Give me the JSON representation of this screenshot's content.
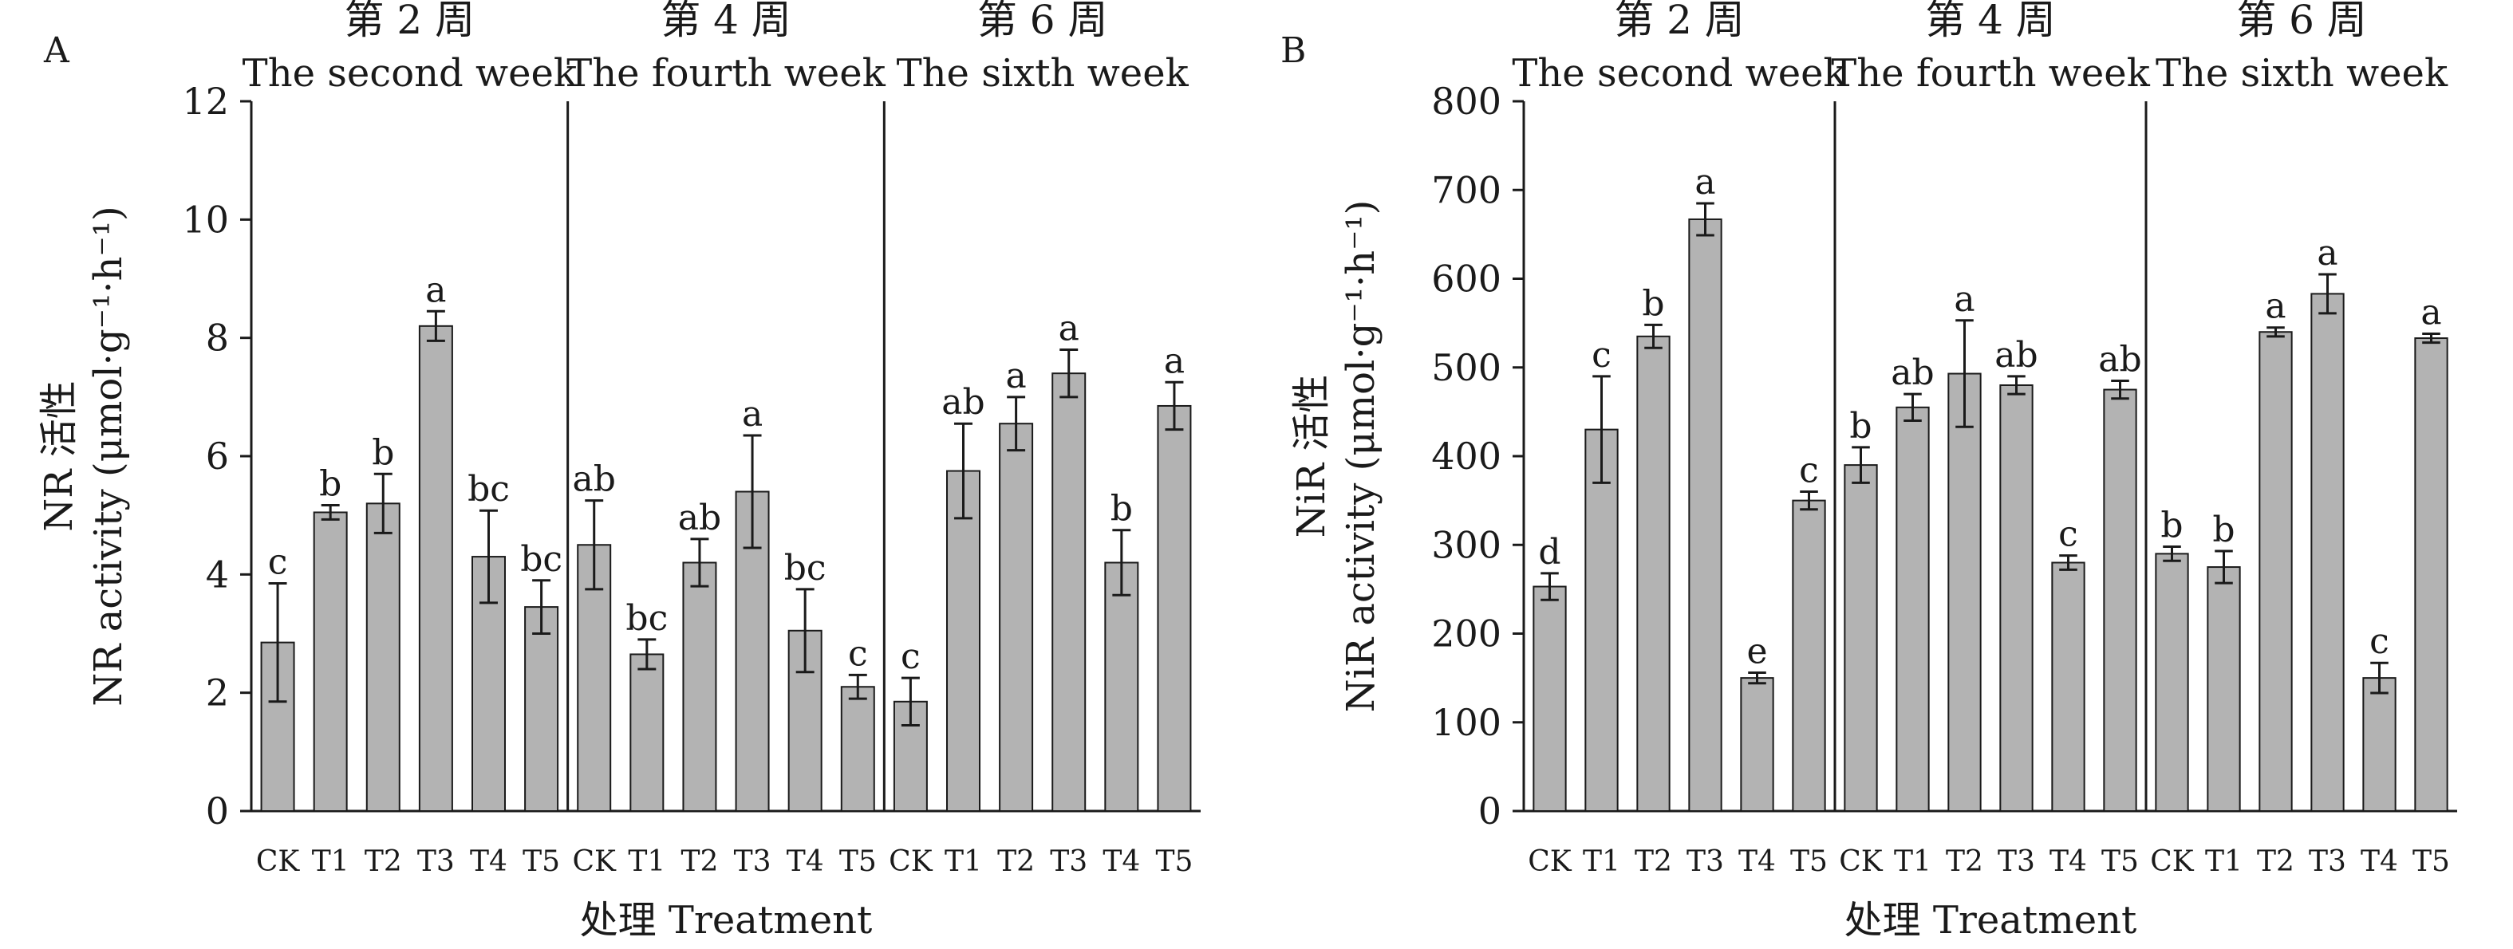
{
  "chart_data": [
    {
      "panel": "A",
      "type": "bar",
      "ylabel_zh": "NR 活性",
      "ylabel_en": "NR activity (μmol·g⁻¹·h⁻¹)",
      "xlabel": "处理 Treatment",
      "ylim": [
        0,
        12
      ],
      "yticks": [
        "0",
        "2",
        "4",
        "6",
        "8",
        "10",
        "12"
      ],
      "bar_color": "#b3b3b3",
      "groups": [
        {
          "label_zh": "第 2 周",
          "label_en": "The second week",
          "categories": [
            "CK",
            "T1",
            "T2",
            "T3",
            "T4",
            "T5"
          ],
          "values": [
            2.85,
            5.05,
            5.2,
            8.2,
            4.3,
            3.45
          ],
          "errors": [
            1.0,
            0.12,
            0.5,
            0.25,
            0.78,
            0.45
          ],
          "labels": [
            "c",
            "b",
            "b",
            "a",
            "bc",
            "bc"
          ]
        },
        {
          "label_zh": "第 4 周",
          "label_en": "The fourth week",
          "categories": [
            "CK",
            "T1",
            "T2",
            "T3",
            "T4",
            "T5"
          ],
          "values": [
            4.5,
            2.65,
            4.2,
            5.4,
            3.05,
            2.1
          ],
          "errors": [
            0.75,
            0.25,
            0.4,
            0.95,
            0.7,
            0.2
          ],
          "labels": [
            "ab",
            "bc",
            "ab",
            "a",
            "bc",
            "c"
          ]
        },
        {
          "label_zh": "第 6 周",
          "label_en": "The sixth week",
          "categories": [
            "CK",
            "T1",
            "T2",
            "T3",
            "T4",
            "T5"
          ],
          "values": [
            1.85,
            5.75,
            6.55,
            7.4,
            4.2,
            6.85
          ],
          "errors": [
            0.4,
            0.8,
            0.45,
            0.4,
            0.55,
            0.4
          ],
          "labels": [
            "c",
            "ab",
            "a",
            "a",
            "b",
            "a"
          ]
        }
      ]
    },
    {
      "panel": "B",
      "type": "bar",
      "ylabel_zh": "NiR 活性",
      "ylabel_en": "NiR activity (μmol·g⁻¹·h⁻¹)",
      "xlabel": "处理 Treatment",
      "ylim": [
        0,
        800
      ],
      "yticks": [
        "0",
        "100",
        "200",
        "300",
        "400",
        "500",
        "600",
        "700",
        "800"
      ],
      "bar_color": "#b3b3b3",
      "groups": [
        {
          "label_zh": "第 2 周",
          "label_en": "The second week",
          "categories": [
            "CK",
            "T1",
            "T2",
            "T3",
            "T4",
            "T5"
          ],
          "values": [
            253,
            430,
            535,
            667,
            150,
            350
          ],
          "errors": [
            15,
            60,
            13,
            18,
            6,
            10
          ],
          "labels": [
            "d",
            "c",
            "b",
            "a",
            "e",
            "c"
          ]
        },
        {
          "label_zh": "第 4 周",
          "label_en": "The fourth week",
          "categories": [
            "CK",
            "T1",
            "T2",
            "T3",
            "T4",
            "T5"
          ],
          "values": [
            390,
            455,
            493,
            480,
            280,
            475
          ],
          "errors": [
            20,
            15,
            60,
            10,
            8,
            10
          ],
          "labels": [
            "b",
            "ab",
            "a",
            "ab",
            "c",
            "ab"
          ]
        },
        {
          "label_zh": "第 6 周",
          "label_en": "The sixth week",
          "categories": [
            "CK",
            "T1",
            "T2",
            "T3",
            "T4",
            "T5"
          ],
          "values": [
            290,
            275,
            540,
            583,
            150,
            533
          ],
          "errors": [
            8,
            18,
            5,
            22,
            17,
            5
          ],
          "labels": [
            "b",
            "b",
            "a",
            "a",
            "c",
            "a"
          ]
        }
      ]
    }
  ]
}
